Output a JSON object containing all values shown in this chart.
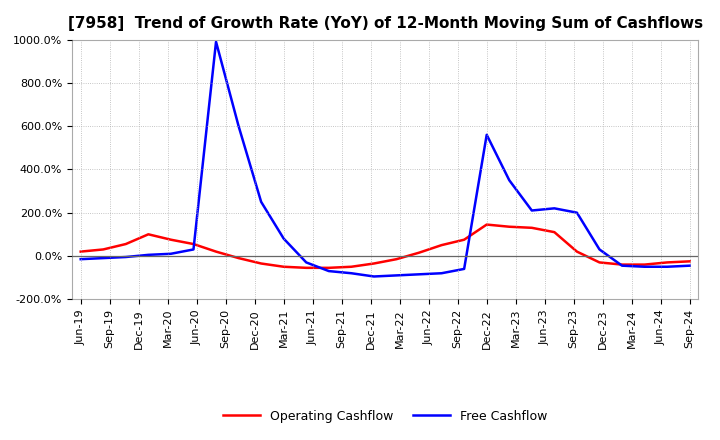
{
  "title": "[7958]  Trend of Growth Rate (YoY) of 12-Month Moving Sum of Cashflows",
  "title_fontsize": 11,
  "background_color": "#ffffff",
  "grid_color": "#aaaaaa",
  "ylim": [
    -200,
    1000
  ],
  "yticks": [
    -200,
    0,
    200,
    400,
    600,
    800,
    1000
  ],
  "ytick_labels": [
    "-200.0%",
    "0.0%",
    "200.0%",
    "400.0%",
    "600.0%",
    "800.0%",
    "1000.0%"
  ],
  "operating_cashflow_color": "#ff0000",
  "free_cashflow_color": "#0000ff",
  "operating_cashflow_label": "Operating Cashflow",
  "free_cashflow_label": "Free Cashflow",
  "operating_cashflow": [
    20,
    30,
    55,
    100,
    75,
    55,
    20,
    -10,
    -35,
    -50,
    -55,
    -55,
    -50,
    -35,
    -15,
    15,
    50,
    75,
    145,
    135,
    130,
    110,
    20,
    -30,
    -40,
    -40,
    -30,
    -25
  ],
  "free_cashflow": [
    -15,
    -10,
    -5,
    5,
    10,
    30,
    990,
    600,
    250,
    80,
    -30,
    -70,
    -80,
    -95,
    -90,
    -85,
    -80,
    -60,
    560,
    350,
    210,
    220,
    200,
    30,
    -45,
    -50,
    -50,
    -45
  ],
  "n_points": 28,
  "xtick_positions": [
    0,
    1,
    2,
    3,
    4,
    5,
    6,
    7,
    8,
    9,
    10,
    11,
    12,
    13,
    14,
    15,
    16,
    17,
    18,
    19,
    20,
    21
  ],
  "xtick_indices": [
    0,
    1,
    2,
    3,
    4,
    5,
    6,
    7,
    8,
    9,
    10,
    11,
    12,
    13,
    14,
    15,
    16,
    17,
    18,
    19,
    20,
    21
  ],
  "xtick_labels": [
    "Jun-19",
    "Sep-19",
    "Dec-19",
    "Mar-20",
    "Jun-20",
    "Sep-20",
    "Dec-20",
    "Mar-21",
    "Jun-21",
    "Sep-21",
    "Dec-21",
    "Mar-22",
    "Jun-22",
    "Sep-22",
    "Dec-22",
    "Mar-23",
    "Jun-23",
    "Sep-23",
    "Dec-23",
    "Mar-24",
    "Jun-24",
    "Sep-24"
  ],
  "line_width": 1.8,
  "legend_fontsize": 9,
  "tick_fontsize": 8
}
